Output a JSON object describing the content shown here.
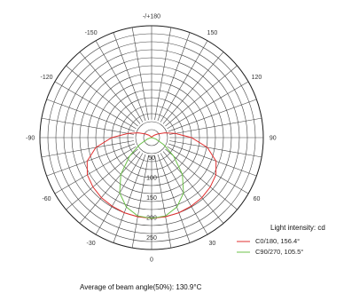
{
  "chart_data": {
    "type": "polar",
    "angle_labels": [
      {
        "deg": 180,
        "text": "-/+180"
      },
      {
        "deg": 150,
        "text": "150"
      },
      {
        "deg": -150,
        "text": "-150"
      },
      {
        "deg": 120,
        "text": "120"
      },
      {
        "deg": -120,
        "text": "-120"
      },
      {
        "deg": 90,
        "text": "90"
      },
      {
        "deg": -90,
        "text": "-90"
      },
      {
        "deg": 60,
        "text": "60"
      },
      {
        "deg": -60,
        "text": "-60"
      },
      {
        "deg": 30,
        "text": "30"
      },
      {
        "deg": -30,
        "text": "-30"
      },
      {
        "deg": 0,
        "text": "0"
      }
    ],
    "radial_ticks": [
      50,
      100,
      150,
      200,
      250
    ],
    "rmax": 280,
    "radial_unit": "cd",
    "series": [
      {
        "name": "C0/180, 156.4°",
        "color": "#e03030",
        "angles": [
          0,
          10,
          20,
          30,
          40,
          50,
          60,
          70,
          80,
          90,
          100,
          110,
          120,
          130,
          140,
          150,
          160,
          170,
          180
        ],
        "values": [
          202,
          201,
          200,
          198,
          196,
          192,
          186,
          172,
          142,
          100,
          60,
          35,
          18,
          10,
          5,
          2,
          0,
          0,
          0
        ]
      },
      {
        "name": "C90/270, 105.5°",
        "color": "#6cc04a",
        "angles": [
          0,
          10,
          20,
          30,
          40,
          50,
          60,
          70,
          80,
          90
        ],
        "values": [
          202,
          199,
          185,
          160,
          120,
          72,
          35,
          12,
          3,
          0
        ]
      }
    ]
  },
  "legend": {
    "title": "Light intensity: cd",
    "items": [
      "C0/180, 156.4°",
      "C90/270, 105.5°"
    ]
  },
  "note": "Average of beam angle(50%): 130.9°C"
}
